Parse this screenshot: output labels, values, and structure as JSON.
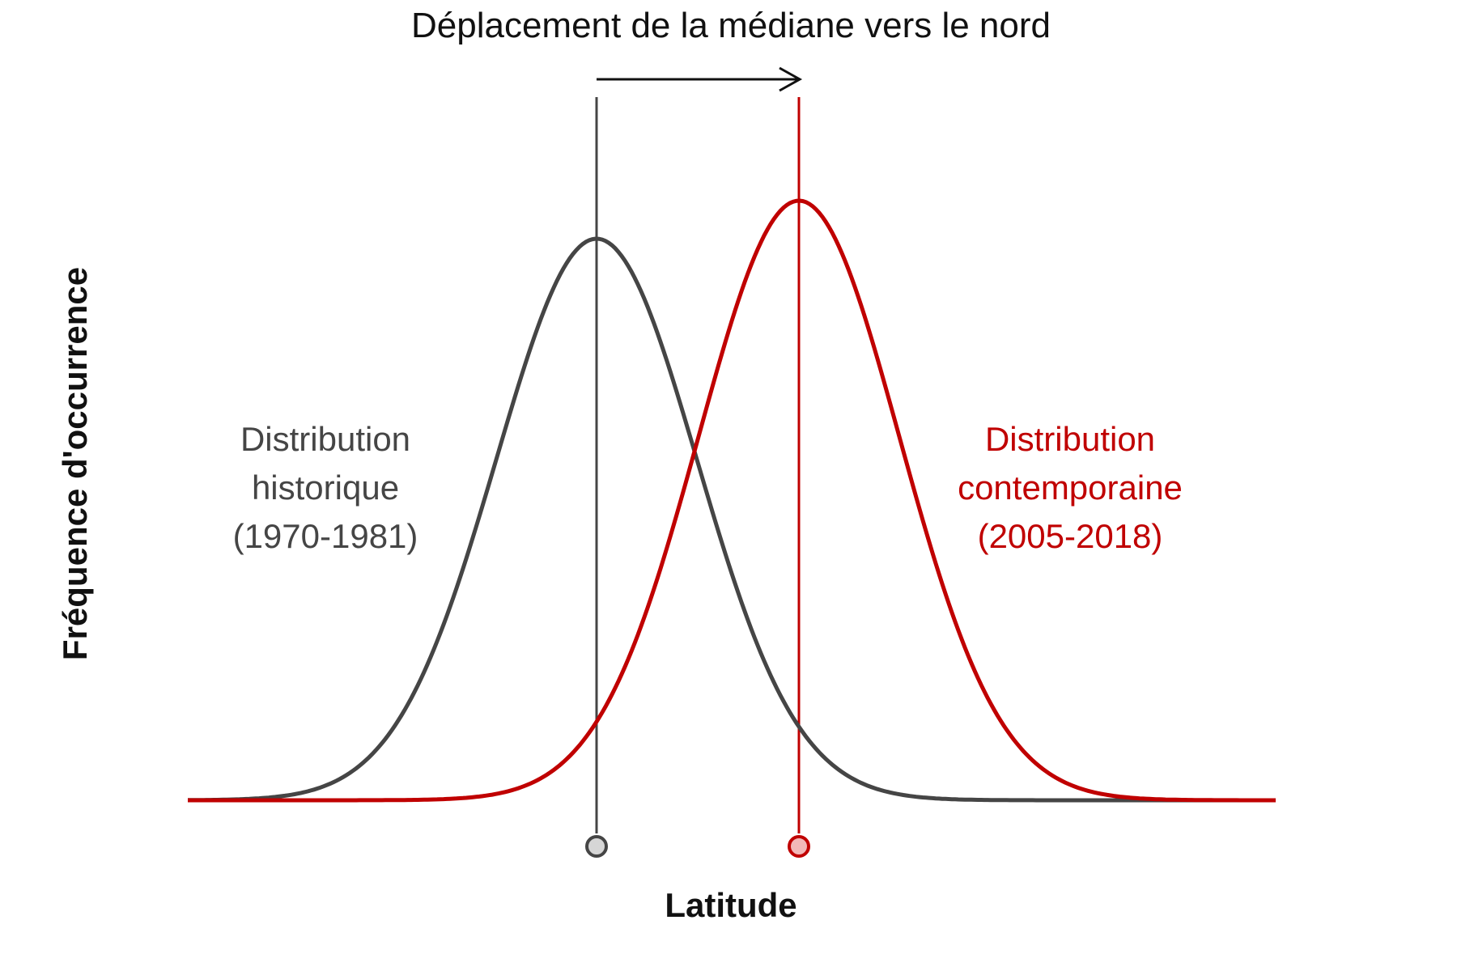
{
  "title": "Déplacement de la médiane vers le nord",
  "axes": {
    "x_label": "Latitude",
    "y_label": "Fréquence d'occurrence"
  },
  "colors": {
    "historical": "#454545",
    "contemporary": "#c00000",
    "historical_marker_fill": "#d6d6d6",
    "contemporary_marker_fill": "#f2b8b8"
  },
  "distributions": [
    {
      "id": "historical",
      "label_lines": [
        "Distribution",
        "historique",
        "(1970-1981)"
      ]
    },
    {
      "id": "contemporary",
      "label_lines": [
        "Distribution",
        "contemporaine",
        "(2005-2018)"
      ]
    }
  ],
  "icons": {
    "shift_arrow": "arrow-right-icon",
    "median_marker": "circle-marker-icon"
  }
}
